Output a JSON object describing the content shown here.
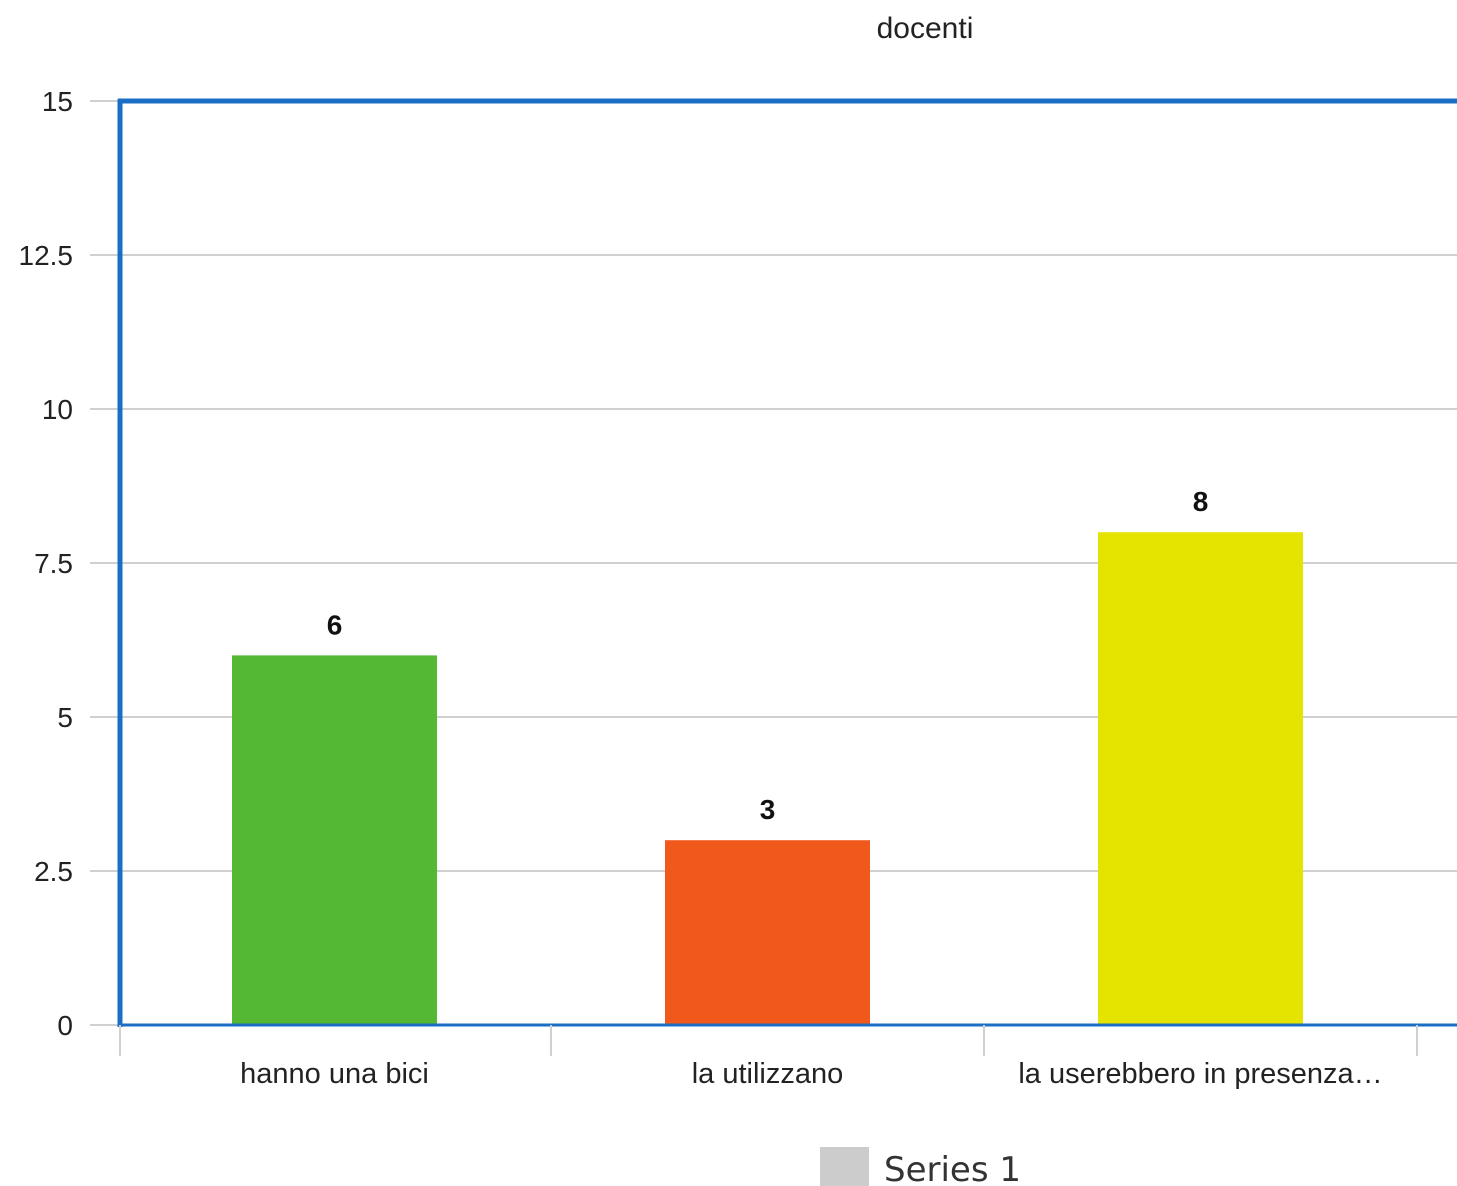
{
  "chart_data": {
    "type": "bar",
    "title": "docenti",
    "categories": [
      "hanno una bici",
      "la utilizzano",
      "la userebbero in presenza…"
    ],
    "series": [
      {
        "name": "Series 1",
        "values": [
          6,
          3,
          8
        ],
        "colors": [
          "#55b833",
          "#f1581b",
          "#e4e400"
        ]
      }
    ],
    "data_labels": [
      "6",
      "3",
      "8"
    ],
    "ylim": [
      0,
      15
    ],
    "yticks": [
      0,
      2.5,
      5,
      7.5,
      10,
      12.5,
      15
    ],
    "ytick_labels": [
      "0",
      "2.5",
      "5",
      "7.5",
      "10",
      "12.5",
      "15"
    ],
    "grid": true,
    "legend_position": "bottom",
    "legend_swatch_color": "#cccccc",
    "axis_color": "#1a6fc4",
    "grid_color": "#d0d0d0"
  }
}
